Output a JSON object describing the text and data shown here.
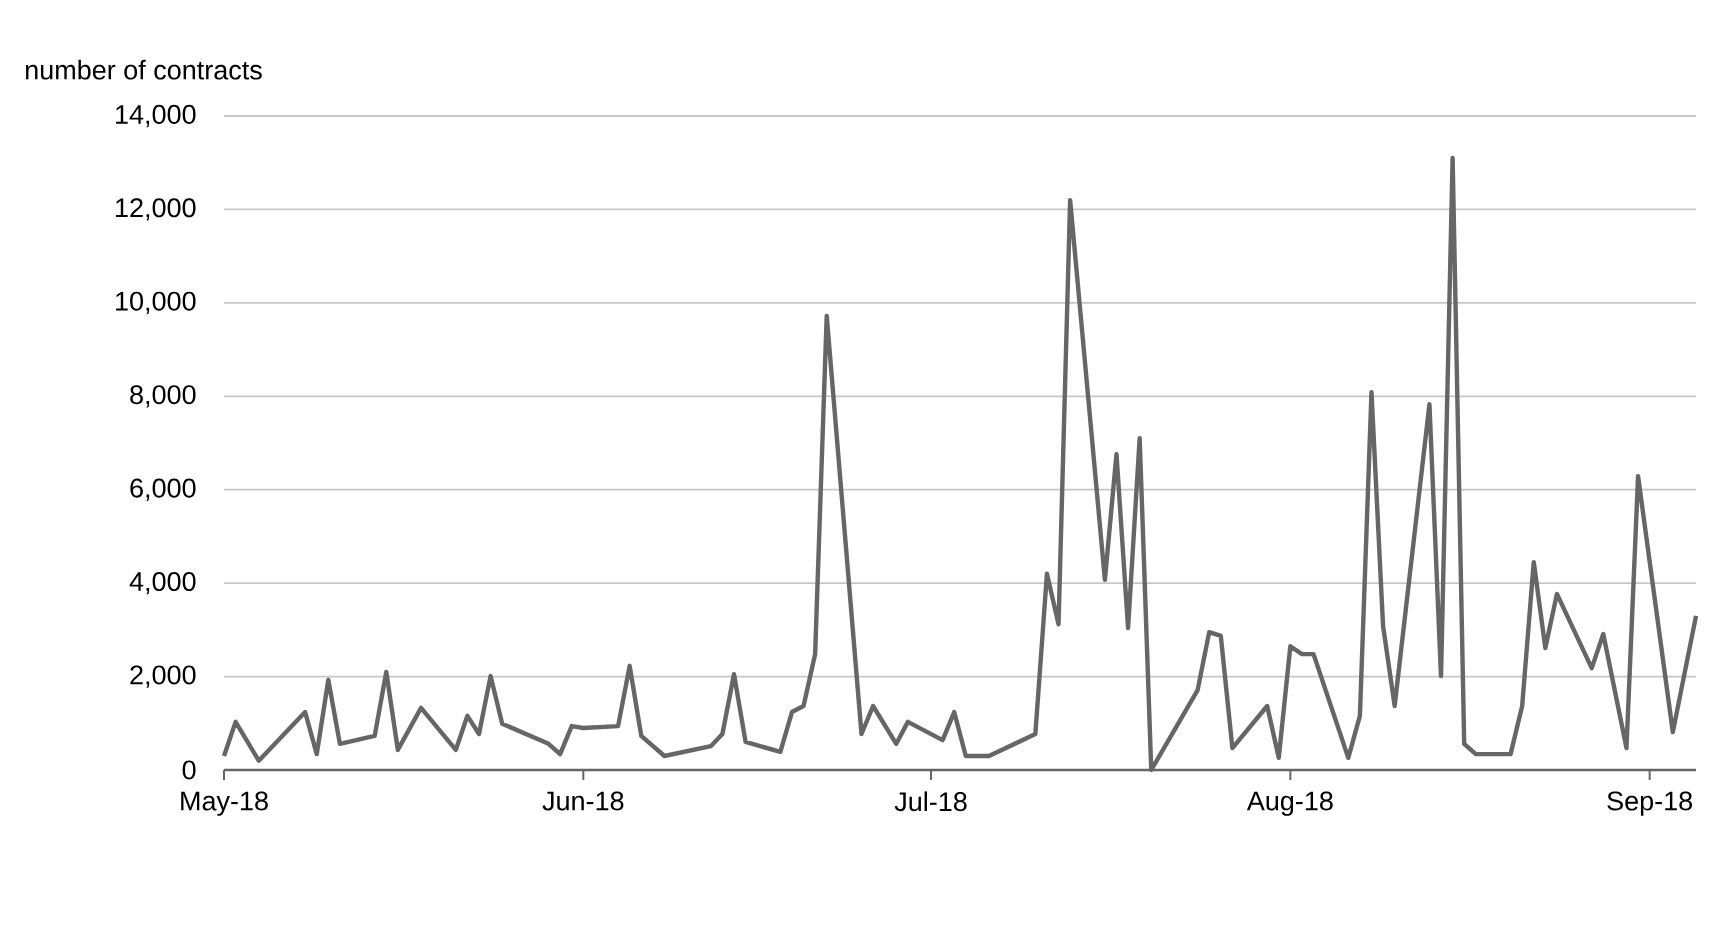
{
  "chart_data": {
    "type": "line",
    "ylabel": "number of contracts",
    "x": [
      "2018-05-01",
      "2018-05-02",
      "2018-05-04",
      "2018-05-08",
      "2018-05-09",
      "2018-05-10",
      "2018-05-11",
      "2018-05-14",
      "2018-05-15",
      "2018-05-16",
      "2018-05-18",
      "2018-05-21",
      "2018-05-22",
      "2018-05-23",
      "2018-05-24",
      "2018-05-25",
      "2018-05-29",
      "2018-05-30",
      "2018-05-31",
      "2018-06-01",
      "2018-06-04",
      "2018-06-05",
      "2018-06-06",
      "2018-06-08",
      "2018-06-12",
      "2018-06-13",
      "2018-06-14",
      "2018-06-15",
      "2018-06-18",
      "2018-06-19",
      "2018-06-20",
      "2018-06-21",
      "2018-06-22",
      "2018-06-25",
      "2018-06-26",
      "2018-06-28",
      "2018-06-29",
      "2018-07-02",
      "2018-07-03",
      "2018-07-04",
      "2018-07-06",
      "2018-07-10",
      "2018-07-11",
      "2018-07-12",
      "2018-07-13",
      "2018-07-16",
      "2018-07-17",
      "2018-07-18",
      "2018-07-19",
      "2018-07-20",
      "2018-07-24",
      "2018-07-25",
      "2018-07-26",
      "2018-07-27",
      "2018-07-30",
      "2018-07-31",
      "2018-08-01",
      "2018-08-02",
      "2018-08-03",
      "2018-08-06",
      "2018-08-07",
      "2018-08-08",
      "2018-08-09",
      "2018-08-10",
      "2018-08-13",
      "2018-08-14",
      "2018-08-15",
      "2018-08-16",
      "2018-08-17",
      "2018-08-20",
      "2018-08-21",
      "2018-08-22",
      "2018-08-23",
      "2018-08-24",
      "2018-08-27",
      "2018-08-28",
      "2018-08-30",
      "2018-08-31",
      "2018-09-03",
      "2018-09-05"
    ],
    "series": [
      {
        "color": "#666666",
        "values": [
          300,
          1030,
          200,
          1240,
          340,
          1930,
          560,
          730,
          2100,
          430,
          1330,
          430,
          1160,
          770,
          2010,
          990,
          560,
          340,
          940,
          900,
          940,
          2230,
          730,
          300,
          510,
          770,
          2050,
          600,
          390,
          1240,
          1370,
          2480,
          9720,
          770,
          1370,
          560,
          1030,
          640,
          1240,
          300,
          300,
          770,
          4200,
          3120,
          12200,
          4070,
          6760,
          3040,
          7100,
          0,
          1710,
          2950,
          2870,
          470,
          1370,
          260,
          2650,
          2480,
          2480,
          260,
          1160,
          8090,
          3080,
          1370,
          7830,
          2010,
          13100,
          560,
          340,
          340,
          1370,
          4450,
          2610,
          3770,
          2180,
          2910,
          470,
          6290,
          810,
          3300
        ]
      }
    ],
    "xlim": [
      "2018-05-01",
      "2018-09-05"
    ],
    "xticks": [
      {
        "value": "2018-05-01",
        "label": "May-18"
      },
      {
        "value": "2018-06-01",
        "label": "Jun-18"
      },
      {
        "value": "2018-07-01",
        "label": "Jul-18"
      },
      {
        "value": "2018-08-01",
        "label": "Aug-18"
      },
      {
        "value": "2018-09-01",
        "label": "Sep-18"
      }
    ],
    "ylim": [
      0,
      14000
    ],
    "yticks": [
      0,
      {
        "value": 2000,
        "label": "2,000"
      },
      {
        "value": 4000,
        "label": "4,000"
      },
      {
        "value": 6000,
        "label": "6,000"
      },
      {
        "value": 8000,
        "label": "8,000"
      },
      {
        "value": 10000,
        "label": "10,000"
      },
      {
        "value": 12000,
        "label": "12,000"
      },
      {
        "value": 14000,
        "label": "14,000"
      }
    ],
    "grid": "y",
    "legend": false,
    "marker": "none",
    "line_style": "solid"
  }
}
